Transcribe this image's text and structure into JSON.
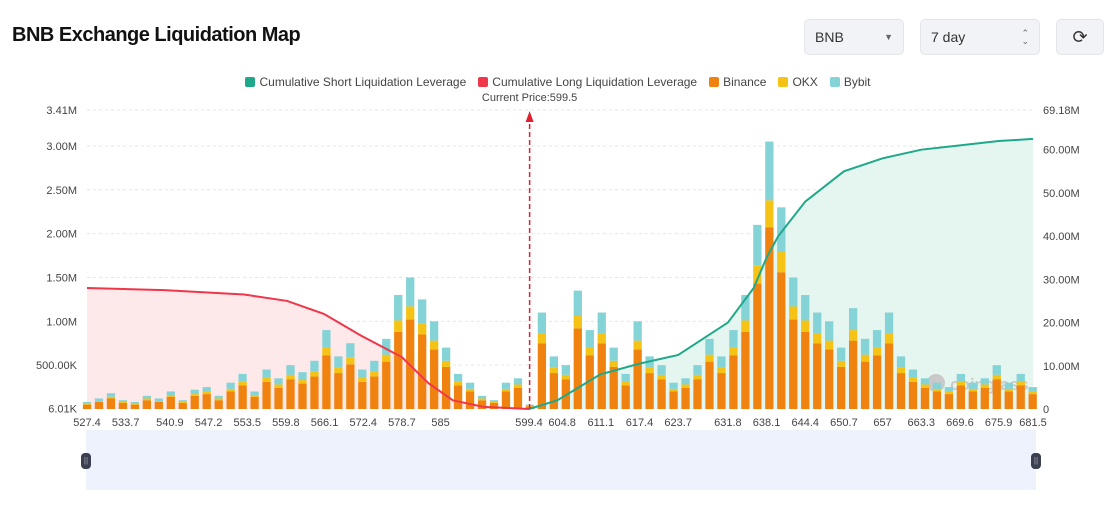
{
  "header": {
    "title": "BNB Exchange Liquidation Map",
    "coin_select": "BNB",
    "period_select": "7 day",
    "refresh_icon": "refresh-icon"
  },
  "watermark": "coinglass",
  "chart_data": {
    "type": "bar",
    "current_price_label": "Current Price:599.5",
    "current_price": 599.5,
    "legend": [
      "Cumulative Short Liquidation Leverage",
      "Cumulative Long Liquidation Leverage",
      "Binance",
      "OKX",
      "Bybit"
    ],
    "colors": {
      "short": "#1fa88a",
      "long": "#f0364a",
      "Binance": "#f0830f",
      "OKX": "#f5c316",
      "Bybit": "#84d3d6"
    },
    "x_ticks": [
      "527.4",
      "533.7",
      "540.9",
      "547.2",
      "553.5",
      "559.8",
      "566.1",
      "572.4",
      "578.7",
      "585",
      "599.4",
      "604.8",
      "611.1",
      "617.4",
      "623.7",
      "631.8",
      "638.1",
      "644.4",
      "650.7",
      "657",
      "663.3",
      "669.6",
      "675.9",
      "681.5"
    ],
    "y_left_ticks": [
      "6.01K",
      "500.00K",
      "1.00M",
      "1.50M",
      "2.00M",
      "2.50M",
      "3.00M",
      "3.41M"
    ],
    "y_right_ticks": [
      "0",
      "10.00M",
      "20.00M",
      "30.00M",
      "40.00M",
      "50.00M",
      "60.00M",
      "69.18M"
    ],
    "xlim": [
      527.4,
      681.5
    ],
    "ylim_left_M": [
      0,
      3.41
    ],
    "ylim_right_M": [
      0,
      69.18
    ],
    "price_start": 527.4,
    "price_step": 1.95,
    "series": [
      {
        "name": "Binance",
        "values": [
          0.05,
          0.08,
          0.12,
          0.07,
          0.05,
          0.1,
          0.08,
          0.14,
          0.07,
          0.15,
          0.17,
          0.1,
          0.2,
          0.27,
          0.14,
          0.31,
          0.24,
          0.34,
          0.29,
          0.37,
          0.61,
          0.41,
          0.51,
          0.31,
          0.37,
          0.54,
          0.88,
          1.02,
          0.85,
          0.68,
          0.48,
          0.27,
          0.2,
          0.1,
          0.07,
          0.2,
          0.24,
          0.03,
          0.75,
          0.41,
          0.34,
          0.92,
          0.61,
          0.75,
          0.48,
          0.27,
          0.68,
          0.41,
          0.34,
          0.2,
          0.24,
          0.34,
          0.54,
          0.41,
          0.61,
          0.88,
          1.43,
          2.07,
          1.56,
          1.02,
          0.88,
          0.75,
          0.68,
          0.48,
          0.78,
          0.54,
          0.61,
          0.75,
          0.41,
          0.31,
          0.24,
          0.2,
          0.17,
          0.27,
          0.2,
          0.24,
          0.34,
          0.2,
          0.27,
          0.17
        ]
      },
      {
        "name": "OKX",
        "values": [
          0.01,
          0.01,
          0.02,
          0.01,
          0.01,
          0.02,
          0.01,
          0.02,
          0.01,
          0.02,
          0.03,
          0.02,
          0.03,
          0.04,
          0.02,
          0.05,
          0.04,
          0.05,
          0.04,
          0.06,
          0.09,
          0.06,
          0.08,
          0.05,
          0.06,
          0.08,
          0.13,
          0.15,
          0.13,
          0.1,
          0.07,
          0.04,
          0.03,
          0.02,
          0.01,
          0.03,
          0.04,
          0.01,
          0.11,
          0.06,
          0.05,
          0.14,
          0.09,
          0.11,
          0.07,
          0.04,
          0.1,
          0.06,
          0.05,
          0.03,
          0.04,
          0.05,
          0.08,
          0.06,
          0.09,
          0.13,
          0.21,
          0.31,
          0.23,
          0.15,
          0.13,
          0.11,
          0.1,
          0.07,
          0.12,
          0.08,
          0.09,
          0.11,
          0.06,
          0.05,
          0.04,
          0.03,
          0.03,
          0.04,
          0.03,
          0.04,
          0.05,
          0.03,
          0.04,
          0.03
        ]
      },
      {
        "name": "Bybit",
        "values": [
          0.02,
          0.03,
          0.04,
          0.02,
          0.02,
          0.03,
          0.03,
          0.04,
          0.02,
          0.05,
          0.05,
          0.03,
          0.07,
          0.09,
          0.04,
          0.09,
          0.07,
          0.11,
          0.09,
          0.12,
          0.2,
          0.13,
          0.16,
          0.09,
          0.12,
          0.18,
          0.29,
          0.33,
          0.27,
          0.22,
          0.15,
          0.09,
          0.07,
          0.03,
          0.02,
          0.07,
          0.07,
          0.01,
          0.24,
          0.13,
          0.11,
          0.29,
          0.2,
          0.24,
          0.15,
          0.09,
          0.22,
          0.13,
          0.11,
          0.07,
          0.07,
          0.11,
          0.18,
          0.13,
          0.2,
          0.29,
          0.46,
          0.67,
          0.51,
          0.33,
          0.29,
          0.24,
          0.22,
          0.15,
          0.25,
          0.18,
          0.2,
          0.24,
          0.13,
          0.09,
          0.07,
          0.07,
          0.05,
          0.09,
          0.07,
          0.07,
          0.11,
          0.07,
          0.09,
          0.05
        ]
      }
    ],
    "cumulative_long": [
      [
        527.4,
        28
      ],
      [
        540,
        27.5
      ],
      [
        553,
        26.5
      ],
      [
        560,
        25
      ],
      [
        566,
        22
      ],
      [
        572,
        17
      ],
      [
        578.7,
        12
      ],
      [
        583,
        6
      ],
      [
        587,
        2
      ],
      [
        592,
        0.5
      ],
      [
        599.4,
        0
      ]
    ],
    "cumulative_short": [
      [
        599.4,
        0
      ],
      [
        604,
        2
      ],
      [
        611,
        8
      ],
      [
        617.4,
        10.5
      ],
      [
        623.7,
        12.5
      ],
      [
        631.8,
        20
      ],
      [
        636,
        28
      ],
      [
        638.1,
        35
      ],
      [
        640,
        40
      ],
      [
        644.4,
        48
      ],
      [
        650.7,
        55
      ],
      [
        657,
        58
      ],
      [
        663.3,
        60
      ],
      [
        669.6,
        61
      ],
      [
        675.9,
        62
      ],
      [
        681.5,
        62.5
      ]
    ]
  }
}
